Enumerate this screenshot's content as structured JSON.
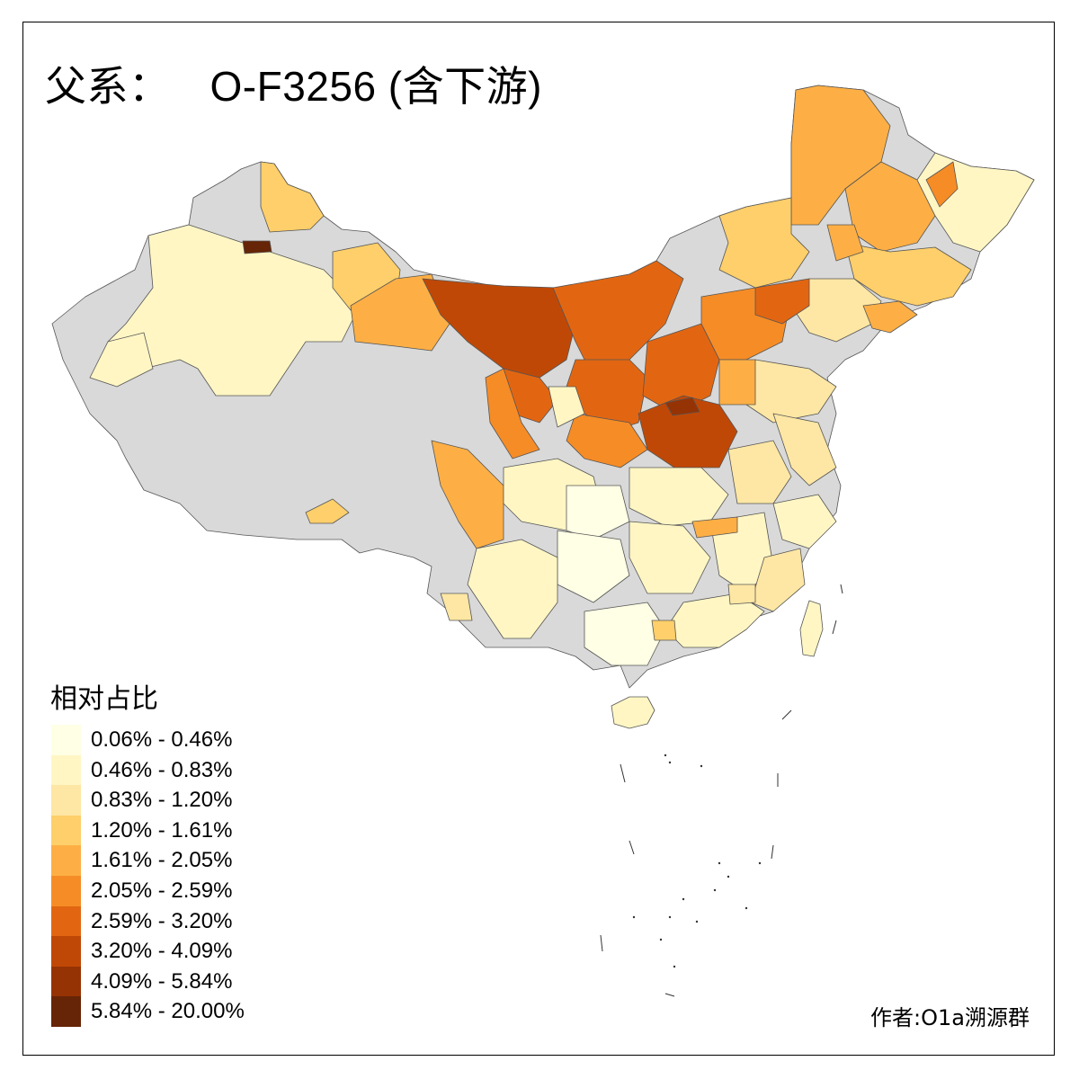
{
  "title": {
    "prefix": "父系：",
    "haplogroup": "O-F3256 (含下游)"
  },
  "legend": {
    "title": "相对占比",
    "bins": [
      {
        "label": "0.06% - 0.46%",
        "color": "#FFFFE5"
      },
      {
        "label": "0.46% - 0.83%",
        "color": "#FFF6C4"
      },
      {
        "label": "0.83% - 1.20%",
        "color": "#FEE7A4"
      },
      {
        "label": "1.20% - 1.61%",
        "color": "#FECF6A"
      },
      {
        "label": "1.61% - 2.05%",
        "color": "#FDAF45"
      },
      {
        "label": "2.05% - 2.59%",
        "color": "#F68C26"
      },
      {
        "label": "2.59% - 3.20%",
        "color": "#E26612"
      },
      {
        "label": "3.20% - 4.09%",
        "color": "#C04806"
      },
      {
        "label": "4.09% - 5.84%",
        "color": "#953304"
      },
      {
        "label": "5.84% - 20.00%",
        "color": "#662506"
      }
    ]
  },
  "no_data_color": "#D9D9D9",
  "credit": "作者:O1a溯源群"
}
